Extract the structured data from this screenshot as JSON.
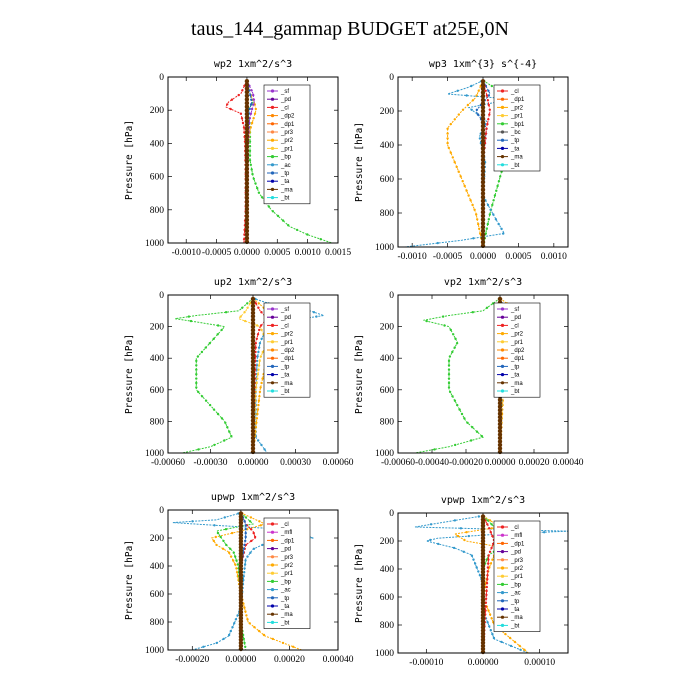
{
  "title": "taus_144_gammap  BUDGET at25E,0N",
  "colors": {
    "sf": "#9933cc",
    "pd": "#660099",
    "cl": "#ee2222",
    "dp2": "#ff8800",
    "dp1": "#ff6600",
    "pr3": "#ff8844",
    "pr2": "#ffaa00",
    "pr1": "#ffcc33",
    "bp": "#33cc33",
    "ac": "#3399cc",
    "tp": "#2266bb",
    "ta": "#0000aa",
    "ma": "#663300",
    "bt": "#22dddd",
    "mfl": "#cc33cc"
  },
  "chart_data": [
    {
      "type": "line",
      "title": "wp2   1xm^2/s^3",
      "ylabel": "Pressure [hPa]",
      "ylim": [
        1000,
        0
      ],
      "xlim": [
        -0.0013,
        0.0015
      ],
      "xticks": [
        "-0.0010",
        "-0.0005",
        "0.0000",
        "0.0005",
        "0.0010",
        "0.0015"
      ],
      "xtick_values": [
        -0.001,
        -0.0005,
        0,
        0.0005,
        0.001,
        0.0015
      ],
      "yticks": [
        "0",
        "200",
        "400",
        "600",
        "800",
        "1000"
      ],
      "legend": [
        "_sf",
        "_pd",
        "_cl",
        "_dp2",
        "_dp1",
        "_pr3",
        "_pr2",
        "_pr1",
        "_bp",
        "_ac",
        "_tp",
        "_ta",
        "_ma",
        "_bt"
      ],
      "series": [
        {
          "key": "bp",
          "p": [
            20,
            100,
            150,
            200,
            300,
            400,
            500,
            600,
            700,
            800,
            900,
            950,
            1000
          ],
          "v": [
            0,
            5e-05,
            0.0001,
            2e-05,
            5e-05,
            5e-05,
            5e-05,
            0.0001,
            0.0002,
            0.0004,
            0.0007,
            0.001,
            0.0014
          ]
        },
        {
          "key": "cl",
          "p": [
            20,
            100,
            150,
            180,
            220,
            300,
            400,
            600,
            800,
            1000
          ],
          "v": [
            0,
            -0.0001,
            -0.0003,
            -0.00035,
            -0.0001,
            -5e-05,
            -3e-05,
            -2e-05,
            -2e-05,
            -5e-05
          ]
        },
        {
          "key": "pr2",
          "p": [
            20,
            100,
            150,
            200,
            260,
            320,
            400,
            600,
            1000
          ],
          "v": [
            0,
            5e-05,
            0.00012,
            0.00015,
            0.0001,
            5e-05,
            2e-05,
            1e-05,
            0
          ]
        },
        {
          "key": "sf",
          "p": [
            20,
            100,
            150,
            200,
            260,
            400,
            600,
            1000
          ],
          "v": [
            0,
            0.0001,
            0.00012,
            8e-05,
            4e-05,
            2e-05,
            1e-05,
            0
          ]
        },
        {
          "key": "tp",
          "p": [
            20,
            100,
            150,
            200,
            250,
            400,
            1000
          ],
          "v": [
            0,
            5e-05,
            8e-05,
            4e-05,
            2e-05,
            1e-05,
            0
          ]
        },
        {
          "key": "ta",
          "p": [
            20,
            100,
            200,
            400,
            1000
          ],
          "v": [
            0,
            1e-05,
            0,
            0,
            0
          ]
        },
        {
          "key": "ma",
          "p": [
            20,
            100,
            200,
            400,
            600,
            800,
            1000
          ],
          "v": [
            0,
            0,
            0,
            0,
            0,
            0,
            0
          ]
        }
      ]
    },
    {
      "type": "line",
      "title": "wp3   1xm^{3} s^{-4}",
      "ylabel": "Pressure [hPa]",
      "ylim": [
        1000,
        0
      ],
      "xlim": [
        -0.0012,
        0.0012
      ],
      "xticks": [
        "-0.0010",
        "-0.0005",
        "0.0000",
        "0.0005",
        "0.0010"
      ],
      "xtick_values": [
        -0.001,
        -0.0005,
        0,
        0.0005,
        0.001
      ],
      "yticks": [
        "0",
        "200",
        "400",
        "600",
        "800",
        "1000"
      ],
      "legend": [
        "_cl",
        "_dp1",
        "_pr2",
        "_pr1",
        "_bp1",
        "_bc",
        "_tp",
        "_ta",
        "_ma",
        "_bt"
      ],
      "series": [
        {
          "key": "bp",
          "p": [
            20,
            100,
            150,
            200,
            260,
            350,
            500,
            650,
            800,
            900,
            1000
          ],
          "v": [
            0,
            0.0003,
            0.0005,
            0.0006,
            0.0005,
            0.0004,
            0.0003,
            0.0002,
            0.0001,
            5e-05,
            0
          ]
        },
        {
          "key": "pr2",
          "p": [
            20,
            120,
            200,
            300,
            400,
            500,
            600,
            800,
            1000
          ],
          "v": [
            0,
            -0.0001,
            -0.0003,
            -0.0005,
            -0.0005,
            -0.0004,
            -0.0003,
            -0.0001,
            0
          ]
        },
        {
          "key": "ac",
          "p": [
            20,
            60,
            100,
            130,
            180,
            260,
            350,
            500,
            700,
            850,
            920,
            960,
            1000
          ],
          "v": [
            0,
            -0.0002,
            -0.0005,
            0.0004,
            -0.0002,
            5e-05,
            -5e-05,
            3e-05,
            0,
            0.0002,
            0.0003,
            -0.0003,
            -0.0011
          ]
        },
        {
          "key": "tp",
          "p": [
            20,
            100,
            200,
            300,
            500,
            1000
          ],
          "v": [
            0,
            0.0001,
            -0.0001,
            5e-05,
            0,
            0
          ]
        },
        {
          "key": "cl",
          "p": [
            20,
            100,
            200,
            300,
            500,
            1000
          ],
          "v": [
            0,
            5e-05,
            0.0001,
            5e-05,
            0,
            0
          ]
        },
        {
          "key": "ma",
          "p": [
            20,
            200,
            500,
            1000
          ],
          "v": [
            0,
            0,
            0,
            0
          ]
        }
      ]
    },
    {
      "type": "line",
      "title": "up2   1xm^2/s^3",
      "ylabel": "Pressure [hPa]",
      "ylim": [
        1000,
        0
      ],
      "xlim": [
        -0.0006,
        0.0006
      ],
      "xticks": [
        "-0.00060",
        "-0.00030",
        "0.00000",
        "0.00030",
        "0.00060"
      ],
      "xtick_values": [
        -0.0006,
        -0.0003,
        0,
        0.0003,
        0.0006
      ],
      "yticks": [
        "0",
        "200",
        "400",
        "600",
        "800",
        "1000"
      ],
      "legend": [
        "_sf",
        "_pd",
        "_cl",
        "_pr2",
        "_pr1",
        "_dp2",
        "_dp1",
        "_tp",
        "_ta",
        "_ma",
        "_bt"
      ],
      "series": [
        {
          "key": "bp",
          "p": [
            20,
            100,
            130,
            150,
            170,
            200,
            300,
            400,
            500,
            600,
            700,
            800,
            900,
            960,
            1000
          ],
          "v": [
            0,
            -0.0001,
            -0.0004,
            -0.00055,
            -0.0004,
            -0.0002,
            -0.0003,
            -0.0004,
            -0.0004,
            -0.0004,
            -0.0003,
            -0.0002,
            -0.00015,
            -0.0003,
            -0.0005
          ]
        },
        {
          "key": "ac",
          "p": [
            20,
            80,
            100,
            130,
            170,
            200,
            300,
            400,
            600,
            900,
            1000
          ],
          "v": [
            0,
            0.0002,
            0.0004,
            0.0005,
            0.0002,
            0.0001,
            5e-05,
            3e-05,
            2e-05,
            2e-05,
            0.0001
          ]
        },
        {
          "key": "pr2",
          "p": [
            20,
            100,
            150,
            180,
            250,
            300,
            400,
            600,
            1000
          ],
          "v": [
            0,
            0.0001,
            8e-05,
            0.0002,
            0.0001,
            0.0002,
            0.0001,
            5e-05,
            0
          ]
        },
        {
          "key": "pr1",
          "p": [
            20,
            100,
            150,
            200,
            300,
            400,
            600,
            1000
          ],
          "v": [
            0,
            -5e-05,
            -0.0001,
            5e-05,
            0.0001,
            5e-05,
            2e-05,
            0
          ]
        },
        {
          "key": "cl",
          "p": [
            20,
            100,
            150,
            200,
            300,
            600,
            1000
          ],
          "v": [
            0,
            5e-05,
            0.0001,
            5e-05,
            2e-05,
            1e-05,
            0
          ]
        },
        {
          "key": "ma",
          "p": [
            20,
            200,
            500,
            1000
          ],
          "v": [
            0,
            0,
            0,
            0
          ]
        }
      ]
    },
    {
      "type": "line",
      "title": "vp2   1xm^2/s^3",
      "ylabel": "Pressure [hPa]",
      "ylim": [
        1000,
        0
      ],
      "xlim": [
        -0.0006,
        0.0004
      ],
      "xticks": [
        "-0.00060",
        "-0.00040",
        "-0.00020",
        "0.00000",
        "0.00020",
        "0.00040"
      ],
      "xtick_values": [
        -0.0006,
        -0.0004,
        -0.0002,
        0,
        0.0002,
        0.0004
      ],
      "yticks": [
        "0",
        "200",
        "400",
        "600",
        "800",
        "1000"
      ],
      "legend": [
        "_sf",
        "_pd",
        "_cl",
        "_pr2",
        "_pr1",
        "_dp2",
        "_dp1",
        "_tp",
        "_ta",
        "_ma",
        "_bt"
      ],
      "series": [
        {
          "key": "bp",
          "p": [
            20,
            100,
            130,
            160,
            200,
            300,
            400,
            500,
            600,
            700,
            800,
            900,
            960,
            1000
          ],
          "v": [
            0,
            -0.0001,
            -0.0003,
            -0.00045,
            -0.0003,
            -0.00025,
            -0.0003,
            -0.0003,
            -0.0003,
            -0.00025,
            -0.0002,
            -0.0001,
            -0.0003,
            -0.0005
          ]
        },
        {
          "key": "pr2",
          "p": [
            20,
            100,
            150,
            200,
            300,
            400,
            600,
            1000
          ],
          "v": [
            0,
            0.0001,
            0.00015,
            0.0001,
            8e-05,
            4e-05,
            2e-05,
            0
          ]
        },
        {
          "key": "ac",
          "p": [
            20,
            100,
            150,
            200,
            300,
            600,
            1000
          ],
          "v": [
            0,
            3e-05,
            6e-05,
            3e-05,
            2e-05,
            1e-05,
            0
          ]
        },
        {
          "key": "cl",
          "p": [
            20,
            100,
            200,
            600,
            1000
          ],
          "v": [
            0,
            2e-05,
            2e-05,
            0,
            0
          ]
        },
        {
          "key": "ma",
          "p": [
            20,
            200,
            500,
            1000
          ],
          "v": [
            0,
            0,
            0,
            0
          ]
        }
      ]
    },
    {
      "type": "line",
      "title": "upwp   1xm^2/s^3",
      "ylabel": "Pressure [hPa]",
      "ylim": [
        1000,
        0
      ],
      "xlim": [
        -0.0003,
        0.0004
      ],
      "xticks": [
        "-0.00020",
        "0.00000",
        "0.00020",
        "0.00040"
      ],
      "xtick_values": [
        -0.0002,
        0,
        0.0002,
        0.0004
      ],
      "yticks": [
        "0",
        "200",
        "400",
        "600",
        "800",
        "1000"
      ],
      "legend": [
        "_cl",
        "_mfl",
        "_dp1",
        "_pd",
        "_pr3",
        "_pr2",
        "_pr1",
        "_bp",
        "_ac",
        "_tp",
        "_ta",
        "_ma",
        "_bt"
      ],
      "series": [
        {
          "key": "ac",
          "p": [
            20,
            70,
            90,
            110,
            130,
            160,
            200,
            240,
            280,
            350,
            500,
            700,
            900,
            950,
            1000
          ],
          "v": [
            0,
            -0.0001,
            -0.00028,
            -0.0001,
            0.0001,
            0.0002,
            0.0003,
            0.0001,
            5e-05,
            2e-05,
            1e-05,
            0,
            -5e-05,
            -0.0001,
            -0.0002
          ]
        },
        {
          "key": "pr2",
          "p": [
            20,
            100,
            150,
            200,
            250,
            300,
            400,
            600,
            800,
            900,
            1000
          ],
          "v": [
            0,
            0.0001,
            0,
            -0.00012,
            -0.0001,
            -5e-05,
            -2e-05,
            0,
            3e-05,
            0.0001,
            0.00025
          ]
        },
        {
          "key": "bp",
          "p": [
            20,
            100,
            150,
            200,
            250,
            300,
            400,
            600,
            800,
            1000
          ],
          "v": [
            0,
            5e-05,
            -0.0001,
            -8e-05,
            -6e-05,
            -3e-05,
            -1e-05,
            0,
            0,
            2e-05
          ]
        },
        {
          "key": "cl",
          "p": [
            20,
            100,
            150,
            200,
            250,
            400,
            1000
          ],
          "v": [
            0,
            2e-05,
            5e-05,
            6e-05,
            2e-05,
            0,
            0
          ]
        },
        {
          "key": "tp",
          "p": [
            20,
            100,
            200,
            400,
            1000
          ],
          "v": [
            0,
            2e-05,
            2e-05,
            0,
            0
          ]
        },
        {
          "key": "ma",
          "p": [
            20,
            200,
            500,
            1000
          ],
          "v": [
            0,
            0,
            0,
            0
          ]
        }
      ]
    },
    {
      "type": "line",
      "title": "vpwp   1xm^2/s^3",
      "ylabel": "Pressure [hPa]",
      "ylim": [
        1000,
        0
      ],
      "xlim": [
        -0.00015,
        0.00015
      ],
      "xticks": [
        "-0.00010",
        "0.00000",
        "0.00010"
      ],
      "xtick_values": [
        -0.0001,
        0,
        0.0001
      ],
      "yticks": [
        "0",
        "200",
        "400",
        "600",
        "800",
        "1000"
      ],
      "legend": [
        "_cl",
        "_mfl",
        "_dp1",
        "_pd",
        "_pr3",
        "_pr2",
        "_pr1",
        "_bp",
        "_ac",
        "_tp",
        "_ta",
        "_ma",
        "_bt"
      ],
      "series": [
        {
          "key": "ac",
          "p": [
            20,
            100,
            130,
            150,
            180,
            200,
            250,
            300,
            400,
            500,
            600,
            700,
            800,
            900,
            1000
          ],
          "v": [
            0,
            -0.00012,
            0.00015,
            3e-05,
            -8e-05,
            -0.0001,
            -5e-05,
            -2e-05,
            -1e-05,
            0,
            0,
            0,
            1e-05,
            2e-05,
            8e-05
          ]
        },
        {
          "key": "pr2",
          "p": [
            20,
            100,
            150,
            200,
            250,
            300,
            400,
            600,
            800,
            900,
            1000
          ],
          "v": [
            0,
            3e-05,
            -5e-05,
            -3e-05,
            4e-05,
            2e-05,
            1e-05,
            0,
            2e-05,
            5e-05,
            8e-05
          ]
        },
        {
          "key": "bp",
          "p": [
            20,
            100,
            150,
            200,
            250,
            300,
            400,
            600,
            1000
          ],
          "v": [
            0,
            2e-05,
            4e-05,
            5e-05,
            3e-05,
            1e-05,
            0,
            0,
            0
          ]
        },
        {
          "key": "cl",
          "p": [
            20,
            100,
            200,
            300,
            1000
          ],
          "v": [
            0,
            1e-05,
            2e-05,
            1e-05,
            0
          ]
        },
        {
          "key": "ma",
          "p": [
            20,
            200,
            500,
            1000
          ],
          "v": [
            0,
            0,
            0,
            0
          ]
        }
      ]
    }
  ]
}
